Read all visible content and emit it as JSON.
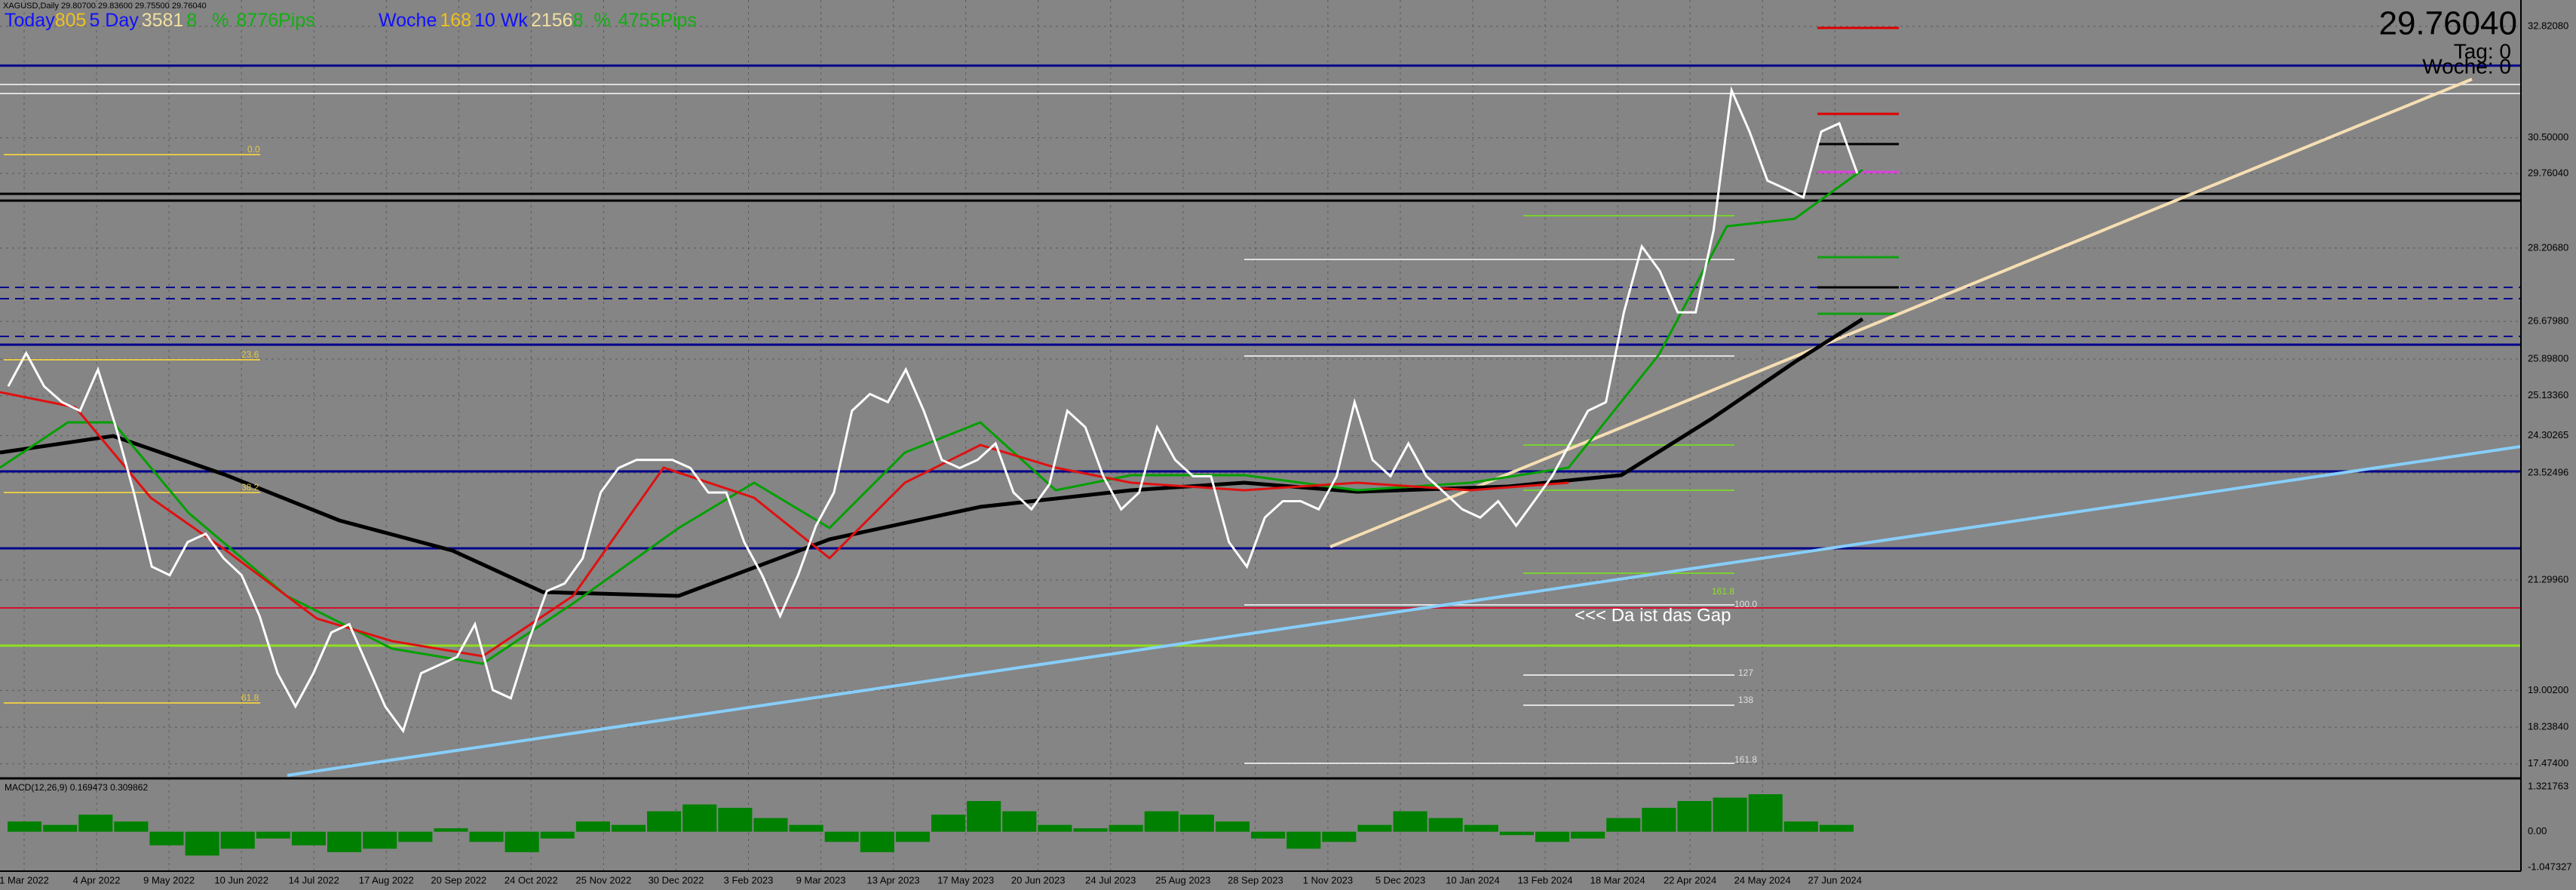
{
  "header": {
    "symbol": "XAGUSD,Daily 29.80700 29.83600 29.75500 29.76040",
    "today": {
      "label": "Today",
      "points": "805",
      "range_label": "5 Day",
      "range_points": "3581",
      "pct": "8",
      "pct_sign": "%",
      "pips": "8776Pips"
    },
    "week": {
      "label": "Woche",
      "points": "168",
      "range_label": "10 Wk",
      "range_points": "2156",
      "pct": "8",
      "pct_sign": "%",
      "pips": "4755Pips"
    },
    "price": "29.76040",
    "tag": "Tag: 0",
    "woche": "Woche: 0"
  },
  "annotation": "<<< Da ist das Gap",
  "fib_labels": [
    "0.0",
    "23.6",
    "38.2",
    "61.8",
    "161.8",
    "127",
    "138",
    "100.0",
    "161.8"
  ],
  "price_axis": {
    "ylim": [
      17.474,
      32.8208
    ],
    "ticks": [
      {
        "value": 32.8208,
        "label": "32.82080"
      },
      {
        "value": 30.5,
        "label": "30.50000"
      },
      {
        "value": 29.7604,
        "label": "29.76040"
      },
      {
        "value": 28.2068,
        "label": "28.20680"
      },
      {
        "value": 26.6798,
        "label": "26.67980"
      },
      {
        "value": 25.898,
        "label": "25.89800"
      },
      {
        "value": 25.1336,
        "label": "25.13360"
      },
      {
        "value": 24.30265,
        "label": "24.30265"
      },
      {
        "value": 23.52496,
        "label": "23.52496"
      },
      {
        "value": 21.2996,
        "label": "21.29960"
      },
      {
        "value": 19.002,
        "label": "19.00200"
      },
      {
        "value": 18.2384,
        "label": "18.23840"
      },
      {
        "value": 17.474,
        "label": "17.47400"
      }
    ]
  },
  "dates": [
    "1 Mar 2022",
    "4 Apr 2022",
    "9 May 2022",
    "10 Jun 2022",
    "14 Jul 2022",
    "17 Aug 2022",
    "20 Sep 2022",
    "24 Oct 2022",
    "25 Nov 2022",
    "30 Dec 2022",
    "3 Feb 2023",
    "9 Mar 2023",
    "13 Apr 2023",
    "17 May 2023",
    "20 Jun 2023",
    "24 Jul 2023",
    "25 Aug 2023",
    "28 Sep 2023",
    "1 Nov 2023",
    "5 Dec 2023",
    "10 Jan 2024",
    "13 Feb 2024",
    "18 Mar 2024",
    "22 Apr 2024",
    "24 May 2024",
    "27 Jun 2024"
  ],
  "close": [
    25.33,
    26.02,
    25.33,
    25.0,
    24.82,
    25.68,
    24.48,
    23.12,
    21.58,
    21.4,
    22.09,
    22.26,
    21.75,
    21.4,
    20.55,
    19.36,
    18.67,
    19.36,
    20.21,
    20.38,
    19.53,
    18.67,
    18.16,
    19.36,
    19.53,
    19.7,
    20.38,
    19.01,
    18.84,
    20.04,
    21.07,
    21.23,
    21.75,
    23.12,
    23.63,
    23.8,
    23.8,
    23.8,
    23.63,
    23.12,
    23.12,
    22.09,
    21.4,
    20.55,
    21.4,
    22.43,
    23.12,
    24.82,
    25.17,
    25.0,
    25.68,
    24.82,
    23.8,
    23.63,
    23.8,
    24.14,
    23.12,
    22.77,
    23.29,
    24.82,
    24.48,
    23.46,
    22.77,
    23.12,
    24.48,
    23.8,
    23.46,
    23.46,
    22.09,
    21.58,
    22.6,
    22.94,
    22.94,
    22.77,
    23.46,
    25.0,
    23.8,
    23.46,
    24.14,
    23.46,
    23.12,
    22.77,
    22.6,
    22.94,
    22.43,
    22.94,
    23.46,
    24.14,
    24.82,
    25.0,
    26.87,
    28.24,
    27.73,
    26.87,
    26.87,
    28.58,
    31.49,
    30.63,
    29.61,
    29.44,
    29.26,
    30.63,
    30.8,
    29.76
  ],
  "macd": {
    "label": "MACD(12,26,9) 0.169473 0.309862",
    "ylim": [
      -1.047327,
      1.321763
    ],
    "ticks": [
      {
        "value": 1.321763,
        "label": "1.321763"
      },
      {
        "value": 0,
        "label": "0.00"
      },
      {
        "value": -1.047327,
        "label": "-1.047327"
      }
    ],
    "values": [
      0.3,
      0.2,
      0.5,
      0.3,
      -0.4,
      -0.7,
      -0.5,
      -0.2,
      -0.4,
      -0.6,
      -0.5,
      -0.3,
      0.1,
      -0.3,
      -0.6,
      -0.2,
      0.3,
      0.2,
      0.6,
      0.8,
      0.7,
      0.4,
      0.2,
      -0.3,
      -0.6,
      -0.3,
      0.5,
      0.9,
      0.6,
      0.2,
      0.1,
      0.2,
      0.6,
      0.5,
      0.3,
      -0.2,
      -0.5,
      -0.3,
      0.2,
      0.6,
      0.4,
      0.2,
      -0.1,
      -0.3,
      -0.2,
      0.4,
      0.7,
      0.9,
      1.0,
      1.1,
      0.3,
      0.2
    ]
  }
}
